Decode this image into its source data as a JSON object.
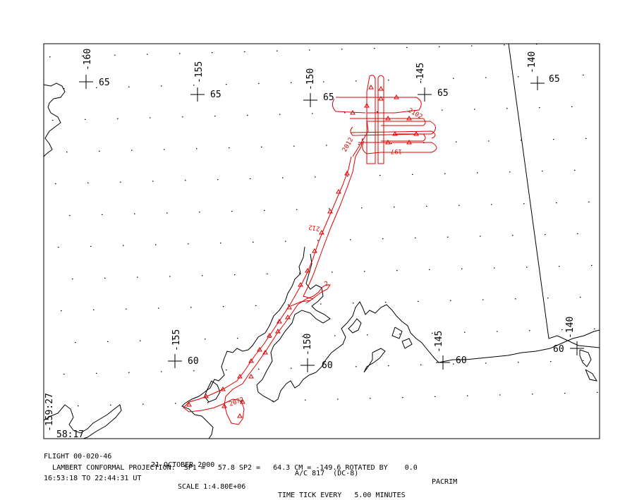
{
  "map": {
    "grid_labels": [
      {
        "text": "-160"
      },
      {
        "text": "65"
      },
      {
        "text": "-155"
      },
      {
        "text": "65"
      },
      {
        "text": "-150"
      },
      {
        "text": "65"
      },
      {
        "text": "-145"
      },
      {
        "text": "65"
      },
      {
        "text": "-140"
      },
      {
        "text": "65"
      },
      {
        "text": "-155"
      },
      {
        "text": "60"
      },
      {
        "text": "-150"
      },
      {
        "text": "60"
      },
      {
        "text": "-145"
      },
      {
        "text": "60"
      },
      {
        "text": "-140"
      },
      {
        "text": "60"
      }
    ],
    "corner_labels": {
      "time_rotated": "-159:27",
      "lat": "58:17"
    },
    "track_labels": [
      "2012",
      "212",
      "2102",
      "197",
      "2072",
      "2"
    ],
    "colors": {
      "track": "#e00000",
      "coast": "#000000",
      "frame": "#000000"
    }
  },
  "footer": {
    "flight": "FLIGHT 00-020-46",
    "date": "21 OCTOBER 2000",
    "aircraft": "A/C 817  (DC-8)",
    "mission": "PACRIM",
    "projection": "LAMBERT CONFORMAL PROJECTION:  SP1 =   57.8 SP2 =   64.3 CM = -149.6 ROTATED BY    0.0",
    "time_range": "16:53:18 TO 22:44:31 UT",
    "scale": "SCALE 1:4.80E+06",
    "tick": "TIME TICK EVERY   5.00 MINUTES"
  }
}
